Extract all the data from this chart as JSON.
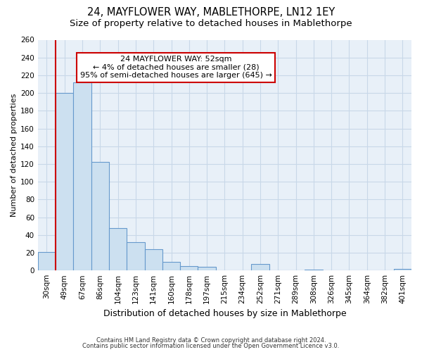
{
  "title": "24, MAYFLOWER WAY, MABLETHORPE, LN12 1EY",
  "subtitle": "Size of property relative to detached houses in Mablethorpe",
  "xlabel": "Distribution of detached houses by size in Mablethorpe",
  "ylabel": "Number of detached properties",
  "categories": [
    "30sqm",
    "49sqm",
    "67sqm",
    "86sqm",
    "104sqm",
    "123sqm",
    "141sqm",
    "160sqm",
    "178sqm",
    "197sqm",
    "215sqm",
    "234sqm",
    "252sqm",
    "271sqm",
    "289sqm",
    "308sqm",
    "326sqm",
    "345sqm",
    "364sqm",
    "382sqm",
    "401sqm"
  ],
  "values": [
    21,
    200,
    212,
    122,
    48,
    32,
    24,
    10,
    5,
    4,
    0,
    0,
    7,
    0,
    0,
    1,
    0,
    0,
    0,
    0,
    2
  ],
  "bar_color": "#cce0f0",
  "bar_edge_color": "#6699cc",
  "marker_line_color": "#cc0000",
  "ylim": [
    0,
    260
  ],
  "yticks": [
    0,
    20,
    40,
    60,
    80,
    100,
    120,
    140,
    160,
    180,
    200,
    220,
    240,
    260
  ],
  "annotation_title": "24 MAYFLOWER WAY: 52sqm",
  "annotation_line1": "← 4% of detached houses are smaller (28)",
  "annotation_line2": "95% of semi-detached houses are larger (645) →",
  "annotation_box_color": "#ffffff",
  "annotation_box_edge": "#cc0000",
  "footer_line1": "Contains HM Land Registry data © Crown copyright and database right 2024.",
  "footer_line2": "Contains public sector information licensed under the Open Government Licence v3.0.",
  "background_color": "#ffffff",
  "plot_bg_color": "#e8f0f8",
  "grid_color": "#c8d8e8",
  "title_fontsize": 10.5,
  "subtitle_fontsize": 9.5,
  "ylabel_fontsize": 8,
  "xlabel_fontsize": 9,
  "tick_fontsize": 7.5,
  "annotation_fontsize": 8
}
